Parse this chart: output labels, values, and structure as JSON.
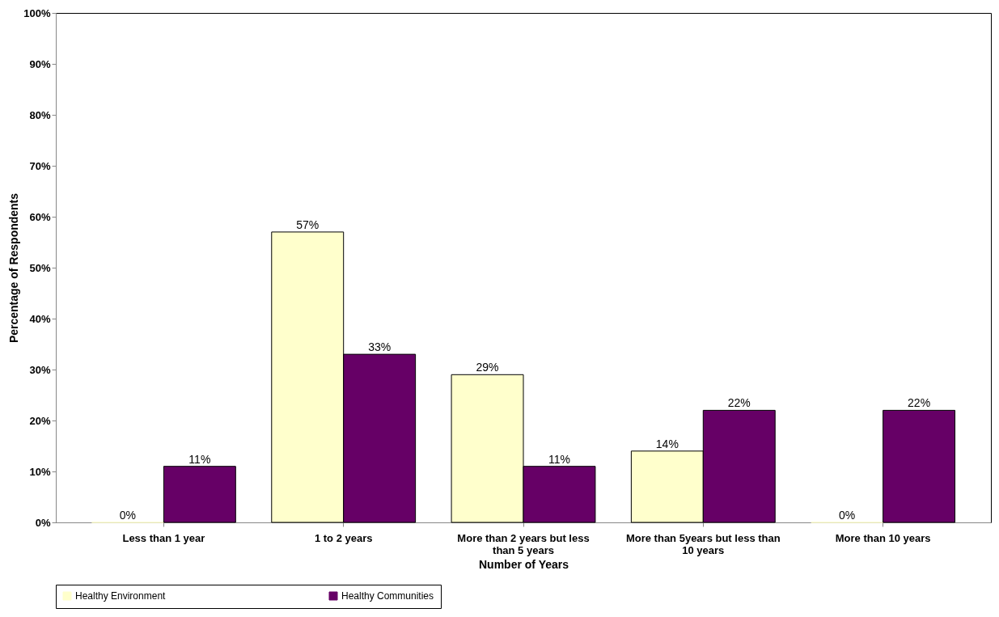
{
  "chart_data": {
    "type": "bar",
    "xlabel": "Number of Years",
    "ylabel": "Percentage of Respondents",
    "categories": [
      "Less than 1 year",
      "1 to 2 years",
      "More than 2 years but less than 5 years",
      "More than 5years but less than 10 years",
      "More than 10 years"
    ],
    "series": [
      {
        "name": "Healthy Environment",
        "color": "#ffffcc",
        "values": [
          0,
          57,
          29,
          14,
          0
        ],
        "value_labels": [
          "0%",
          "57%",
          "29%",
          "14%",
          "0%"
        ]
      },
      {
        "name": "Healthy Communities",
        "color": "#660066",
        "values": [
          11,
          33,
          11,
          22,
          22
        ],
        "value_labels": [
          "11%",
          "33%",
          "11%",
          "22%",
          "22%"
        ]
      }
    ],
    "ylim": [
      0,
      100
    ],
    "yticks": [
      {
        "value": 0,
        "label": "0%"
      },
      {
        "value": 10,
        "label": "10%"
      },
      {
        "value": 20,
        "label": "20%"
      },
      {
        "value": 30,
        "label": "30%"
      },
      {
        "value": 40,
        "label": "40%"
      },
      {
        "value": 50,
        "label": "50%"
      },
      {
        "value": 60,
        "label": "60%"
      },
      {
        "value": 70,
        "label": "70%"
      },
      {
        "value": 80,
        "label": "80%"
      },
      {
        "value": 90,
        "label": "90%"
      },
      {
        "value": 100,
        "label": "100%"
      }
    ],
    "grid": false,
    "legend": "bottom"
  }
}
